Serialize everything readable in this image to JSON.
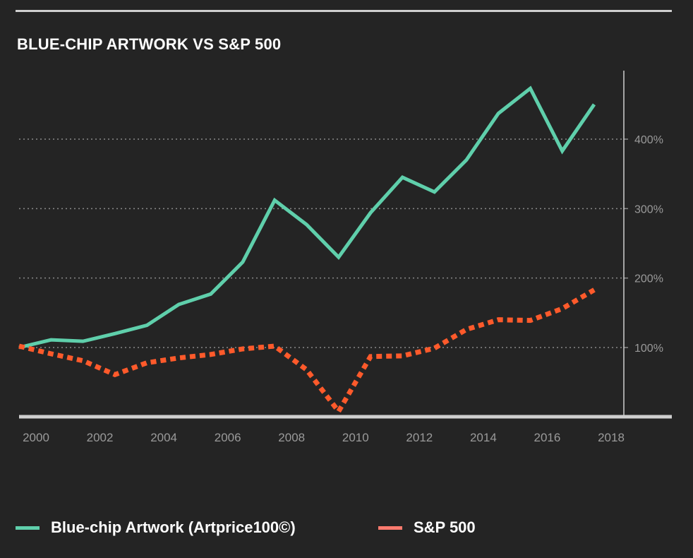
{
  "colors": {
    "background": "#242424",
    "artwork": "#5fcfab",
    "sp500_line": "#ff5a2b",
    "sp500_legend": "#ff7a6e",
    "grid": "#8a8a8a",
    "axis": "#cfcfcf",
    "tick_text": "#9a9a9a"
  },
  "chart_data": {
    "type": "line",
    "title": "BLUE-CHIP ARTWORK VS S&P 500",
    "xlabel": "",
    "ylabel": "",
    "x": [
      2000,
      2001,
      2002,
      2003,
      2004,
      2005,
      2006,
      2007,
      2008,
      2009,
      2010,
      2011,
      2012,
      2013,
      2014,
      2015,
      2016,
      2017,
      2018
    ],
    "x_ticks": [
      "2000",
      "2002",
      "2004",
      "2006",
      "2008",
      "2010",
      "2012",
      "2014",
      "2016",
      "2018"
    ],
    "xlim": [
      2000,
      2018
    ],
    "y_ticks": [
      {
        "value": 100,
        "label": "100%"
      },
      {
        "value": 200,
        "label": "200%"
      },
      {
        "value": 300,
        "label": "300%"
      },
      {
        "value": 400,
        "label": "400%"
      }
    ],
    "ylim": [
      0,
      480
    ],
    "grid": "horizontal-dotted",
    "y_axis_side": "right",
    "legend_position": "bottom",
    "series": [
      {
        "name": "Blue-chip Artwork (Artprice100©)",
        "style": "solid",
        "values": [
          100,
          111,
          109,
          120,
          132,
          162,
          177,
          223,
          312,
          277,
          230,
          294,
          345,
          324,
          370,
          437,
          473,
          383,
          450
        ]
      },
      {
        "name": "S&P 500",
        "style": "dashed",
        "values": [
          102,
          91,
          81,
          61,
          78,
          85,
          90,
          98,
          102,
          68,
          8,
          87,
          88,
          99,
          126,
          140,
          139,
          156,
          183
        ]
      }
    ]
  }
}
